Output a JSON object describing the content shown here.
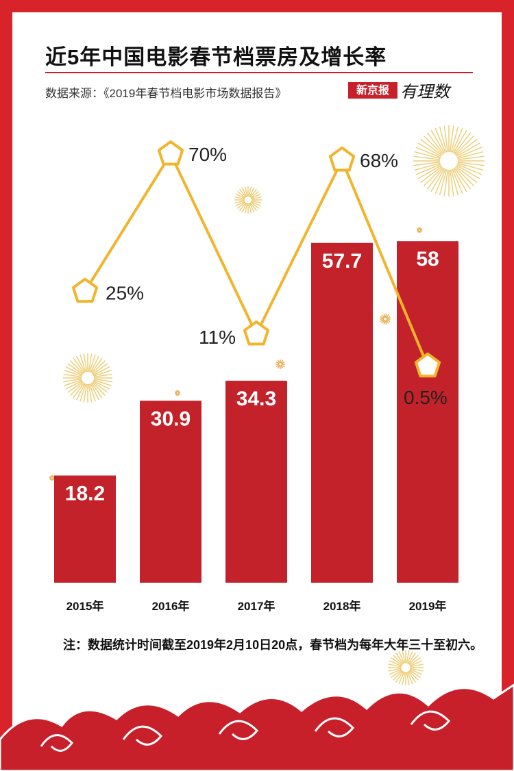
{
  "header": {
    "title": "近5年中国电影春节档票房及增长率",
    "source": "数据来源：《2019年春节档电影市场数据报告》",
    "brand_primary": "新京报",
    "brand_secondary": "有理数"
  },
  "note": "注：数据统计时间截至2019年2月10日20点，春节档为每年大年三十至初六。",
  "colors": {
    "background": "#ffffff",
    "frame": "#d8232a",
    "bar": "#c3222a",
    "line": "#f2b42d",
    "text": "#111111"
  },
  "chart_data": {
    "type": "bar",
    "categories": [
      "2015年",
      "2016年",
      "2017年",
      "2018年",
      "2019年"
    ],
    "series": [
      {
        "values": [
          18.2,
          30.9,
          34.3,
          57.7,
          58
        ]
      }
    ],
    "growth": {
      "type": "line",
      "values": [
        25,
        70,
        11,
        68,
        0.5
      ],
      "labels": [
        "25%",
        "70%",
        "11%",
        "68%",
        "0.5%"
      ]
    },
    "bar_labels": [
      "18.2",
      "30.9",
      "34.3",
      "57.7",
      "58"
    ],
    "ylim": [
      0,
      70
    ],
    "grid": false,
    "legend": "none"
  }
}
